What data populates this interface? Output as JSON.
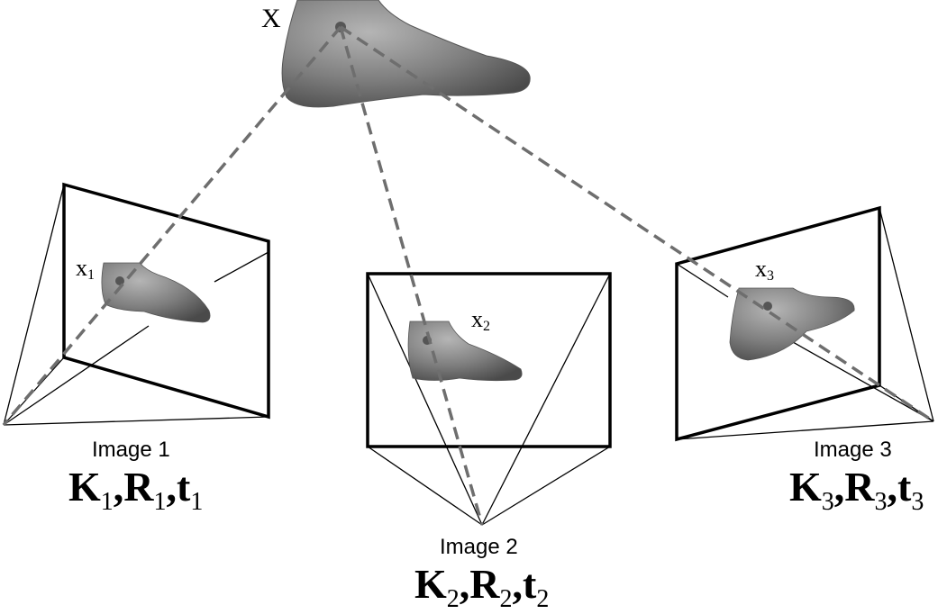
{
  "world_point": {
    "label": "X"
  },
  "cameras": [
    {
      "image_label": "Image 1",
      "point_label": "x",
      "point_sub": "1",
      "K": "K",
      "R": "R",
      "t": "t",
      "sub": "1"
    },
    {
      "image_label": "Image 2",
      "point_label": "x",
      "point_sub": "2",
      "K": "K",
      "R": "R",
      "t": "t",
      "sub": "2"
    },
    {
      "image_label": "Image 3",
      "point_label": "x",
      "point_sub": "3",
      "K": "K",
      "R": "R",
      "t": "t",
      "sub": "3"
    }
  ],
  "colors": {
    "frame": "#000000",
    "ray": "#6e6e6e",
    "foot": "#7a7a7a"
  }
}
